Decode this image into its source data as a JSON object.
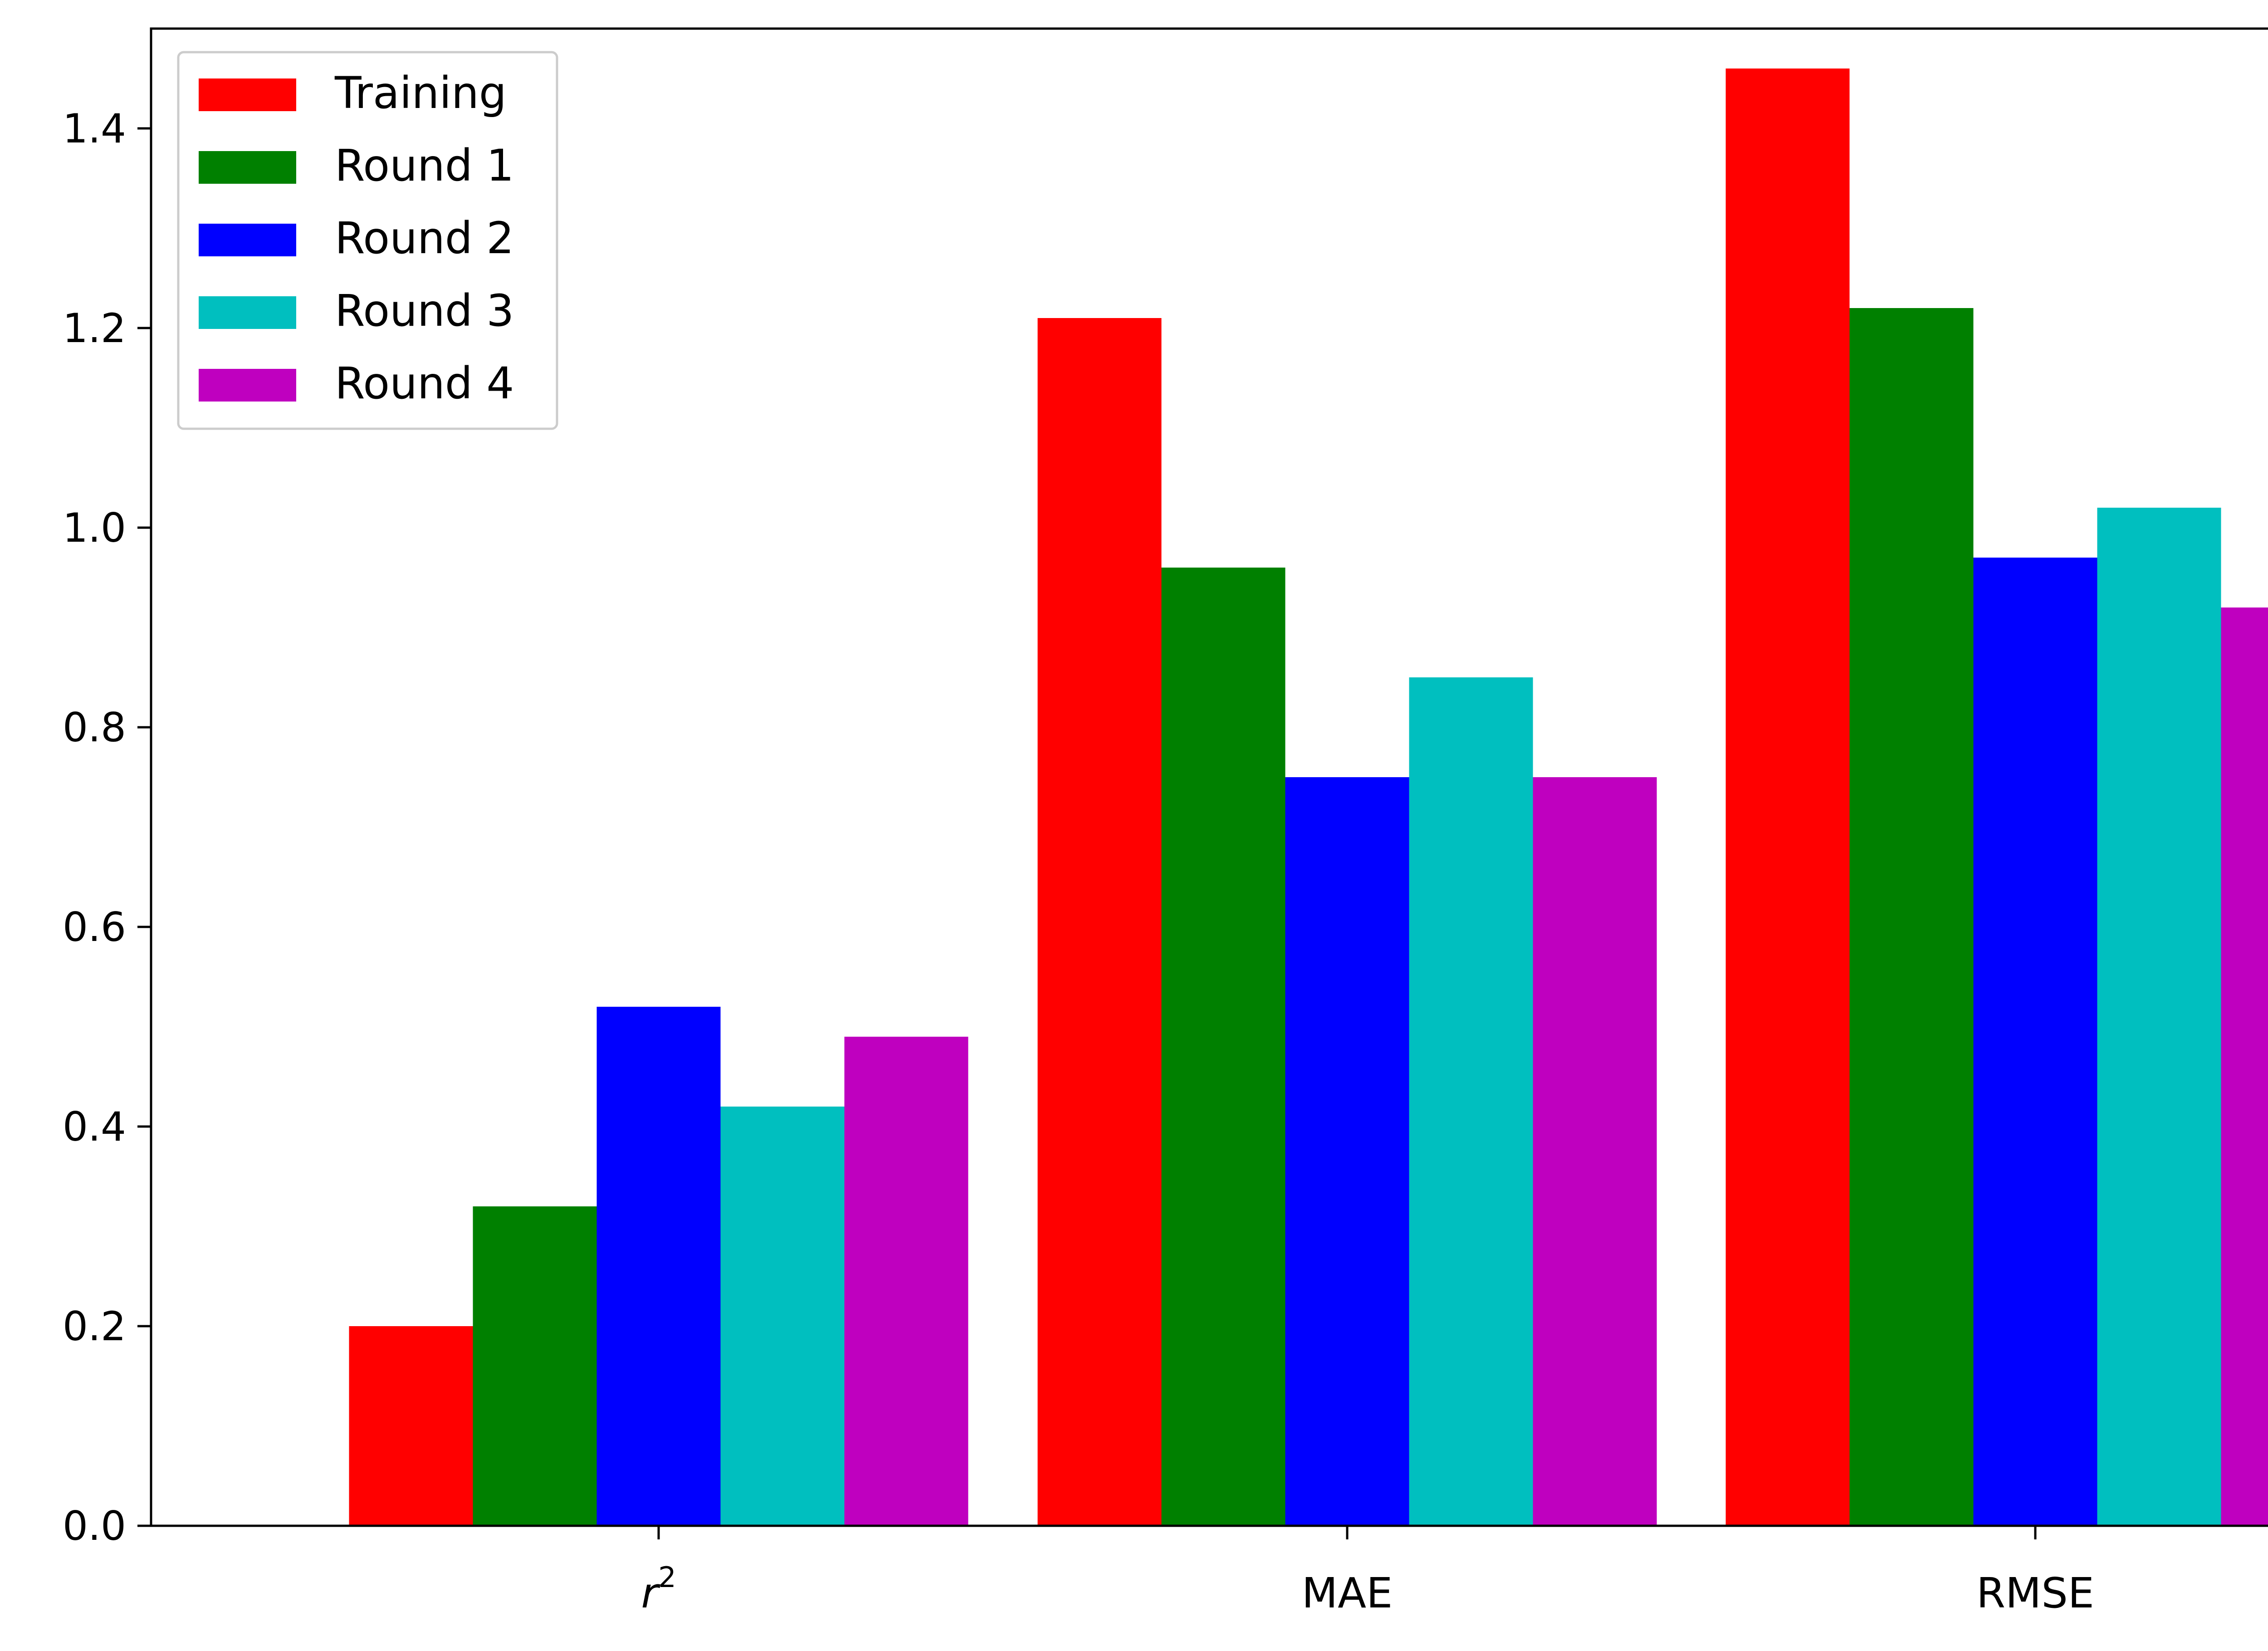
{
  "chart_data": {
    "type": "bar",
    "categories": [
      "r",
      "MAE",
      "RMSE"
    ],
    "category_superscripts": [
      "2",
      "",
      ""
    ],
    "series": [
      {
        "name": "Training",
        "color": "#ff0000",
        "values": [
          0.2,
          1.21,
          1.46
        ]
      },
      {
        "name": "Round 1",
        "color": "#008000",
        "values": [
          0.32,
          0.96,
          1.22
        ]
      },
      {
        "name": "Round 2",
        "color": "#0000ff",
        "values": [
          0.52,
          0.75,
          0.97
        ]
      },
      {
        "name": "Round 3",
        "color": "#00bfbf",
        "values": [
          0.42,
          0.85,
          1.02
        ]
      },
      {
        "name": "Round 4",
        "color": "#bf00bf",
        "values": [
          0.49,
          0.75,
          0.92
        ]
      }
    ],
    "yticks": [
      0.0,
      0.2,
      0.4,
      0.6,
      0.8,
      1.0,
      1.2,
      1.4
    ],
    "ytick_labels": [
      "0.0",
      "0.2",
      "0.4",
      "0.6",
      "0.8",
      "1.0",
      "1.2",
      "1.4"
    ],
    "ylim": [
      0,
      1.5
    ],
    "title": "",
    "xlabel": "",
    "ylabel": "",
    "grid": false,
    "legend_position": "top-left"
  }
}
